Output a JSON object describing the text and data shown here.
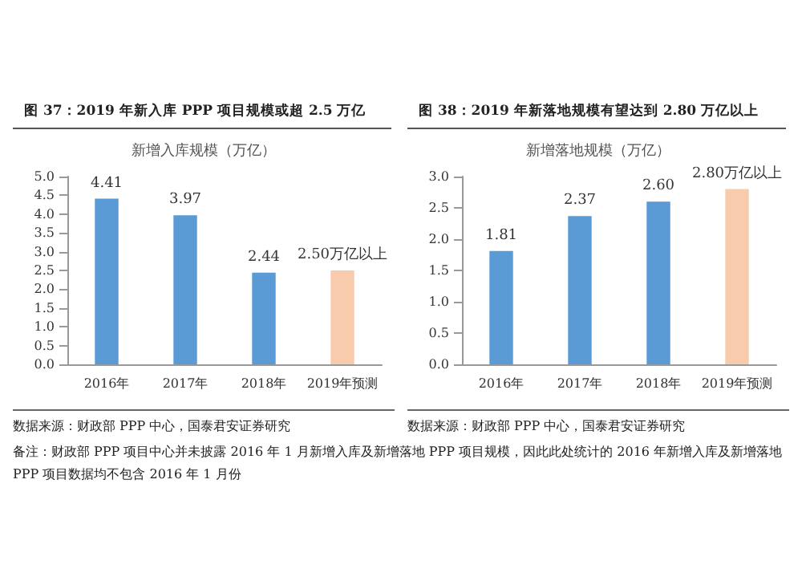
{
  "chart_data": [
    {
      "type": "bar",
      "title": "图 37：2019 年新入库 PPP 项目规模或超 2.5 万亿",
      "subtitle": "新增入库规模（万亿）",
      "categories": [
        "2016年",
        "2017年",
        "2018年",
        "2019年预测"
      ],
      "values": [
        4.41,
        3.97,
        2.44,
        2.5
      ],
      "colors": [
        "#5b9bd5",
        "#5b9bd5",
        "#5b9bd5",
        "#f8cbad"
      ],
      "value_labels": [
        "4.41",
        "3.97",
        "2.44",
        "2.50万亿以上"
      ],
      "ylim": [
        0,
        5
      ],
      "yticks": [
        {
          "value": 0,
          "label": "0.0"
        },
        {
          "value": 0.5,
          "label": "0.5"
        },
        {
          "value": 1,
          "label": "1.0"
        },
        {
          "value": 1.5,
          "label": "1.5"
        },
        {
          "value": 2,
          "label": "2.0"
        },
        {
          "value": 2.5,
          "label": "2.5"
        },
        {
          "value": 3,
          "label": "3.0"
        },
        {
          "value": 3.5,
          "label": "3.5"
        },
        {
          "value": 4,
          "label": "4.0"
        },
        {
          "value": 4.5,
          "label": "4.5"
        },
        {
          "value": 5,
          "label": "5.0"
        }
      ],
      "grid": false,
      "annotations": [
        "数据来源：财政部 PPP 中心，国泰君安证券研究",
        "备注：财政部 PPP 项目中心并未披露 2016 年 1 月新增入库及新增落地 PPP 项目规模，因此此处统计的 2016 年新增入库及新增落地 PPP 项目数据均不包含 2016 年 1 月份"
      ]
    },
    {
      "type": "bar",
      "title": "图 38：2019 年新落地规模有望达到 2.80 万亿以上",
      "subtitle": "新增落地规模（万亿）",
      "categories": [
        "2016年",
        "2017年",
        "2018年",
        "2019年预测"
      ],
      "values": [
        1.81,
        2.37,
        2.6,
        2.8
      ],
      "colors": [
        "#5b9bd5",
        "#5b9bd5",
        "#5b9bd5",
        "#f8cbad"
      ],
      "value_labels": [
        "1.81",
        "2.37",
        "2.60",
        "2.80万亿以上"
      ],
      "ylim": [
        0,
        3
      ],
      "yticks": [
        {
          "value": 0,
          "label": "0.0"
        },
        {
          "value": 0.5,
          "label": "0.5"
        },
        {
          "value": 1,
          "label": "1.0"
        },
        {
          "value": 1.5,
          "label": "1.5"
        },
        {
          "value": 2,
          "label": "2.0"
        },
        {
          "value": 2.5,
          "label": "2.5"
        },
        {
          "value": 3,
          "label": "3.0"
        }
      ],
      "grid": false,
      "annotations": [
        "数据来源：财政部 PPP 中心，国泰君安证券研究"
      ]
    }
  ]
}
